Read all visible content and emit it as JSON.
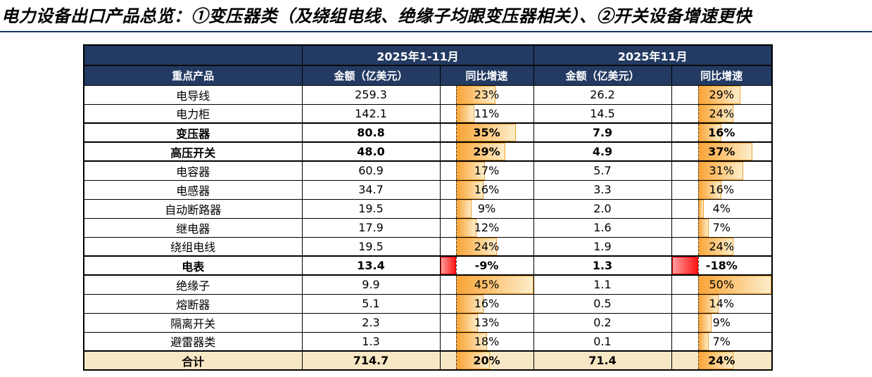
{
  "title": "电力设备出口产品总览：①变压器类（及绕组电线、绝缘子均跟变压器相关）、②开关设备增速更快",
  "colors": {
    "header_bg": "#233a62",
    "header_text": "#ffffff",
    "rule": "#17375e",
    "total_row_bg": "#f8e7c4",
    "bar_positive": "#f9a437",
    "bar_positive_fade": "#fdedca",
    "bar_negative": "#ff1414",
    "grid": "#000000"
  },
  "table": {
    "col_groups": {
      "ytd": "2025年1-11月",
      "nov": "2025年11月"
    },
    "headers": {
      "product": "重点产品",
      "ytd_amount": "金额（亿美元）",
      "ytd_growth": "同比增速",
      "nov_amount": "金额（亿美元）",
      "nov_growth": "同比增速"
    },
    "bar_scales": {
      "ytd": {
        "min": -9,
        "max": 45
      },
      "nov": {
        "min": -18,
        "max": 50
      }
    },
    "rows": [
      {
        "product": "电导线",
        "ytd_amount": "259.3",
        "ytd_growth": 23,
        "ytd_growth_label": "23%",
        "nov_amount": "26.2",
        "nov_growth": 29,
        "nov_growth_label": "29%",
        "bold": false,
        "total": false
      },
      {
        "product": "电力柜",
        "ytd_amount": "142.1",
        "ytd_growth": 11,
        "ytd_growth_label": "11%",
        "nov_amount": "14.5",
        "nov_growth": 24,
        "nov_growth_label": "24%",
        "bold": false,
        "total": false
      },
      {
        "product": "变压器",
        "ytd_amount": "80.8",
        "ytd_growth": 35,
        "ytd_growth_label": "35%",
        "nov_amount": "7.9",
        "nov_growth": 16,
        "nov_growth_label": "16%",
        "bold": true,
        "total": false
      },
      {
        "product": "高压开关",
        "ytd_amount": "48.0",
        "ytd_growth": 29,
        "ytd_growth_label": "29%",
        "nov_amount": "4.9",
        "nov_growth": 37,
        "nov_growth_label": "37%",
        "bold": true,
        "total": false
      },
      {
        "product": "电容器",
        "ytd_amount": "60.9",
        "ytd_growth": 17,
        "ytd_growth_label": "17%",
        "nov_amount": "5.7",
        "nov_growth": 31,
        "nov_growth_label": "31%",
        "bold": false,
        "total": false
      },
      {
        "product": "电感器",
        "ytd_amount": "34.7",
        "ytd_growth": 16,
        "ytd_growth_label": "16%",
        "nov_amount": "3.3",
        "nov_growth": 16,
        "nov_growth_label": "16%",
        "bold": false,
        "total": false
      },
      {
        "product": "自动断路器",
        "ytd_amount": "19.5",
        "ytd_growth": 9,
        "ytd_growth_label": "9%",
        "nov_amount": "2.0",
        "nov_growth": 4,
        "nov_growth_label": "4%",
        "bold": false,
        "total": false
      },
      {
        "product": "继电器",
        "ytd_amount": "17.9",
        "ytd_growth": 12,
        "ytd_growth_label": "12%",
        "nov_amount": "1.6",
        "nov_growth": 7,
        "nov_growth_label": "7%",
        "bold": false,
        "total": false
      },
      {
        "product": "绕组电线",
        "ytd_amount": "19.5",
        "ytd_growth": 24,
        "ytd_growth_label": "24%",
        "nov_amount": "1.9",
        "nov_growth": 24,
        "nov_growth_label": "24%",
        "bold": false,
        "total": false
      },
      {
        "product": "电表",
        "ytd_amount": "13.4",
        "ytd_growth": -9,
        "ytd_growth_label": "-9%",
        "nov_amount": "1.3",
        "nov_growth": -18,
        "nov_growth_label": "-18%",
        "bold": true,
        "total": false
      },
      {
        "product": "绝缘子",
        "ytd_amount": "9.9",
        "ytd_growth": 45,
        "ytd_growth_label": "45%",
        "nov_amount": "1.1",
        "nov_growth": 50,
        "nov_growth_label": "50%",
        "bold": false,
        "total": false
      },
      {
        "product": "熔断器",
        "ytd_amount": "5.1",
        "ytd_growth": 16,
        "ytd_growth_label": "16%",
        "nov_amount": "0.5",
        "nov_growth": 14,
        "nov_growth_label": "14%",
        "bold": false,
        "total": false
      },
      {
        "product": "隔离开关",
        "ytd_amount": "2.3",
        "ytd_growth": 13,
        "ytd_growth_label": "13%",
        "nov_amount": "0.2",
        "nov_growth": 9,
        "nov_growth_label": "9%",
        "bold": false,
        "total": false
      },
      {
        "product": "避雷器类",
        "ytd_amount": "1.3",
        "ytd_growth": 18,
        "ytd_growth_label": "18%",
        "nov_amount": "0.1",
        "nov_growth": 7,
        "nov_growth_label": "7%",
        "bold": false,
        "total": false
      },
      {
        "product": "合计",
        "ytd_amount": "714.7",
        "ytd_growth": 20,
        "ytd_growth_label": "20%",
        "nov_amount": "71.4",
        "nov_growth": 24,
        "nov_growth_label": "24%",
        "bold": true,
        "total": true
      }
    ]
  },
  "chart_data": {
    "type": "table",
    "title": "电力设备出口产品总览：①变压器类（及绕组电线、绝缘子均跟变压器相关）、②开关设备增速更快",
    "column_groups": [
      "2025年1-11月",
      "2025年11月"
    ],
    "columns": [
      "重点产品",
      "金额（亿美元）",
      "同比增速",
      "金额（亿美元）",
      "同比增速"
    ],
    "rows": [
      [
        "电导线",
        259.3,
        "23%",
        26.2,
        "29%"
      ],
      [
        "电力柜",
        142.1,
        "11%",
        14.5,
        "24%"
      ],
      [
        "变压器",
        80.8,
        "35%",
        7.9,
        "16%"
      ],
      [
        "高压开关",
        48.0,
        "29%",
        4.9,
        "37%"
      ],
      [
        "电容器",
        60.9,
        "17%",
        5.7,
        "31%"
      ],
      [
        "电感器",
        34.7,
        "16%",
        3.3,
        "16%"
      ],
      [
        "自动断路器",
        19.5,
        "9%",
        2.0,
        "4%"
      ],
      [
        "继电器",
        17.9,
        "12%",
        1.6,
        "7%"
      ],
      [
        "绕组电线",
        19.5,
        "24%",
        1.9,
        "24%"
      ],
      [
        "电表",
        13.4,
        "-9%",
        1.3,
        "-18%"
      ],
      [
        "绝缘子",
        9.9,
        "45%",
        1.1,
        "50%"
      ],
      [
        "熔断器",
        5.1,
        "16%",
        0.5,
        "14%"
      ],
      [
        "隔离开关",
        2.3,
        "13%",
        0.2,
        "9%"
      ],
      [
        "避雷器类",
        1.3,
        "18%",
        0.1,
        "7%"
      ],
      [
        "合计",
        714.7,
        "20%",
        71.4,
        "24%"
      ]
    ],
    "notes": "同比增速 columns rendered as Excel-style gradient data bars; orange for positive, red for negative; dashed vertical zero axis",
    "bar_axis": {
      "ytd": {
        "min": -9,
        "max": 45
      },
      "nov": {
        "min": -18,
        "max": 50
      }
    }
  }
}
